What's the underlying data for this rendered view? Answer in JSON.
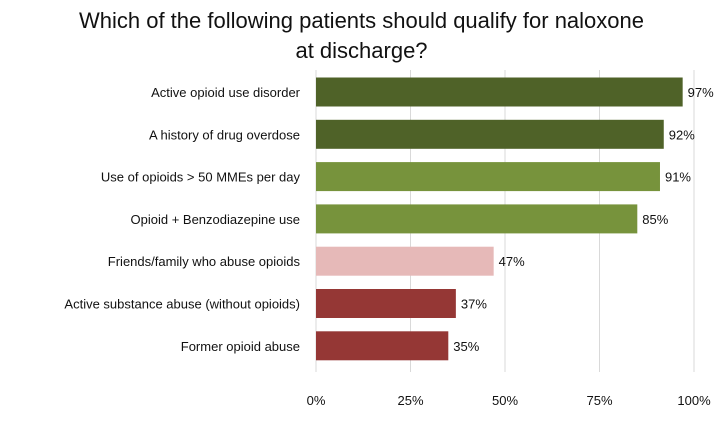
{
  "chart_data": {
    "type": "bar",
    "orientation": "horizontal",
    "title": "Which of the following patients should qualify for naloxone\nat discharge?",
    "categories": [
      "Active opioid use disorder",
      "A history of drug overdose",
      "Use of opioids > 50 MMEs per day",
      "Opioid + Benzodiazepine use",
      "Friends/family who abuse opioids",
      "Active substance abuse (without opioids)",
      "Former opioid abuse"
    ],
    "values": [
      97,
      92,
      91,
      85,
      47,
      37,
      35
    ],
    "value_labels": [
      "97%",
      "92%",
      "91%",
      "85%",
      "47%",
      "37%",
      "35%"
    ],
    "colors": [
      "#4f6228",
      "#4f6228",
      "#77933c",
      "#77933c",
      "#e6b9b8",
      "#953735",
      "#953735"
    ],
    "xlim": [
      0,
      100
    ],
    "x_ticks": [
      0,
      25,
      50,
      75,
      100
    ],
    "x_tick_labels": [
      "0%",
      "25%",
      "50%",
      "75%",
      "100%"
    ],
    "grid": true,
    "legend": "none"
  }
}
